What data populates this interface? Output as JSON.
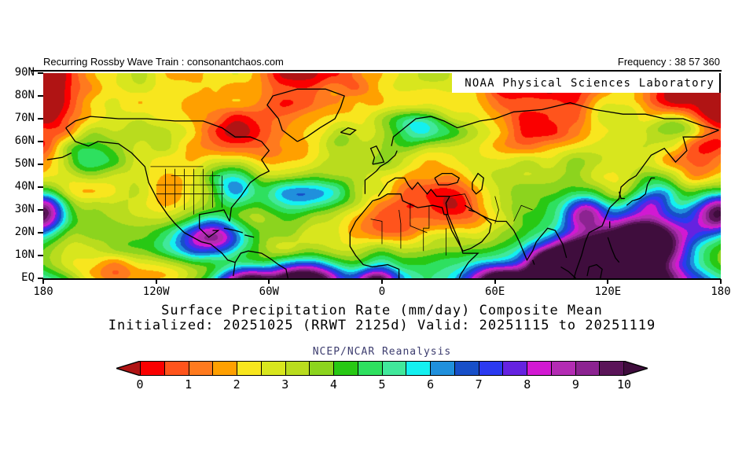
{
  "header": {
    "left_label": "Recurring Rossby Wave Train : consonantchaos.com",
    "frequency_label": "Frequency : 38 57 360"
  },
  "credit": {
    "label": "NOAA Physical Sciences Laboratory"
  },
  "caption": {
    "title": "Surface Precipitation Rate (mm/day) Composite Mean",
    "subtitle": "Initialized: 20251025 (RRWT 2125d) Valid: 20251115 to 20251119",
    "dataset": "NCEP/NCAR Reanalysis"
  },
  "chart_data": {
    "type": "heatmap",
    "title": "Surface Precipitation Rate (mm/day) Composite Mean",
    "subtitle": "Initialized: 20251025 (RRWT 2125d) Valid: 20251115 to 20251119",
    "dataset": "NCEP/NCAR Reanalysis",
    "units": "mm/day",
    "projection": "equirectangular",
    "lon_range": [
      -180,
      180
    ],
    "lat_range": [
      0,
      90
    ],
    "lat_ticks": [
      "90N",
      "80N",
      "70N",
      "60N",
      "50N",
      "40N",
      "30N",
      "20N",
      "10N",
      "EQ"
    ],
    "lon_ticks": [
      "180",
      "120W",
      "60W",
      "0",
      "60E",
      "120E",
      "180"
    ],
    "colorbar": {
      "ticks": [
        "0",
        "1",
        "2",
        "3",
        "4",
        "5",
        "6",
        "7",
        "8",
        "9",
        "10"
      ],
      "level_start": 0,
      "level_step": 0.5,
      "palette": [
        "#fa0000",
        "#ff541c",
        "#ff7a1e",
        "#ffa000",
        "#f8e61e",
        "#d8e61e",
        "#b9dc1e",
        "#8cd41e",
        "#28c814",
        "#2ee05f",
        "#41e89b",
        "#14f0f0",
        "#2090dc",
        "#174fc8",
        "#2b3af0",
        "#6522e0",
        "#d219d2",
        "#b32cb3",
        "#8c2391",
        "#5a1458"
      ],
      "under_color": "#b01414",
      "over_color": "#3f0d3d"
    },
    "field_model": {
      "seed": 7,
      "base_profile": [
        [
          0,
          1.0
        ],
        [
          0.2,
          1.2
        ],
        [
          0.4,
          1.6
        ],
        [
          0.55,
          2.1
        ],
        [
          0.7,
          2.6
        ],
        [
          0.85,
          3.4
        ],
        [
          1,
          4.6
        ]
      ],
      "noise_octaves": [
        [
          7,
          3.5,
          2.0
        ],
        [
          14,
          7,
          1.0
        ],
        [
          28,
          14,
          0.45
        ]
      ],
      "features": [
        [
          0.84,
          1.0,
          0.1,
          0.22,
          9.0
        ],
        [
          0.9,
          0.8,
          0.06,
          0.12,
          6.0
        ],
        [
          0.78,
          0.92,
          0.05,
          0.12,
          6.0
        ],
        [
          0.67,
          1.02,
          0.05,
          0.09,
          7.0
        ],
        [
          0.745,
          0.95,
          0.03,
          0.08,
          4.0
        ],
        [
          0.385,
          1.02,
          0.05,
          0.09,
          8.0
        ],
        [
          0.3,
          1.03,
          0.04,
          0.08,
          6.0
        ],
        [
          0.255,
          0.8,
          0.05,
          0.1,
          6.0
        ],
        [
          0.49,
          1.02,
          0.03,
          0.06,
          5.0
        ],
        [
          0.13,
          0.97,
          0.1,
          0.1,
          -3.0
        ],
        [
          0.28,
          0.55,
          0.04,
          0.1,
          3.5
        ],
        [
          0.38,
          0.6,
          0.06,
          0.08,
          2.5
        ],
        [
          0.055,
          0.4,
          0.05,
          0.12,
          3.0
        ],
        [
          0.905,
          0.6,
          0.04,
          0.1,
          4.5
        ],
        [
          0.8,
          0.68,
          0.03,
          0.08,
          4.5
        ],
        [
          0.985,
          0.7,
          0.04,
          0.1,
          5.0
        ],
        [
          0.55,
          0.26,
          0.04,
          0.08,
          2.2
        ],
        [
          0.94,
          0.25,
          0.04,
          0.08,
          2.5
        ],
        [
          0.44,
          0.3,
          0.03,
          0.07,
          2.0
        ],
        [
          0.005,
          0.68,
          0.03,
          0.1,
          4.0
        ],
        [
          0.52,
          0.76,
          0.08,
          0.14,
          -3.0
        ],
        [
          0.615,
          0.66,
          0.05,
          0.12,
          -2.5
        ],
        [
          0.175,
          0.58,
          0.05,
          0.1,
          -1.5
        ]
      ]
    }
  }
}
